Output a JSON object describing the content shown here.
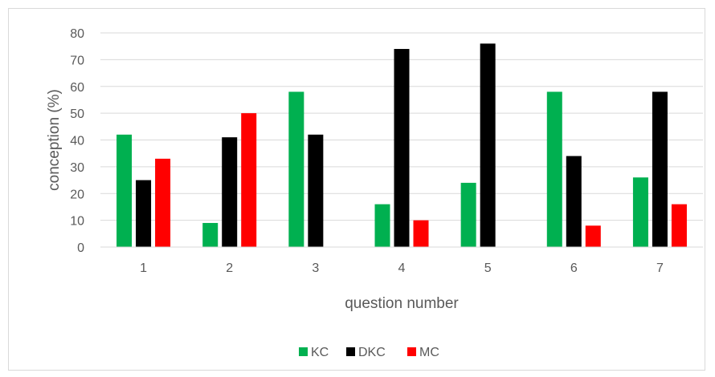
{
  "chart_data": {
    "type": "bar",
    "title": "",
    "xlabel": "question number",
    "ylabel": "conception (%)",
    "ylim": [
      0,
      80
    ],
    "yticks": [
      0,
      10,
      20,
      30,
      40,
      50,
      60,
      70,
      80
    ],
    "categories": [
      "1",
      "2",
      "3",
      "4",
      "5",
      "6",
      "7"
    ],
    "series": [
      {
        "name": "KC",
        "color": "#00b050",
        "values": [
          42,
          9,
          58,
          16,
          24,
          58,
          26
        ]
      },
      {
        "name": "DKC",
        "color": "#000000",
        "values": [
          25,
          41,
          42,
          74,
          76,
          34,
          58
        ]
      },
      {
        "name": "MC",
        "color": "#ff0000",
        "values": [
          33,
          50,
          0,
          10,
          0,
          8,
          16
        ]
      }
    ],
    "grid": true,
    "legend_position": "bottom"
  }
}
